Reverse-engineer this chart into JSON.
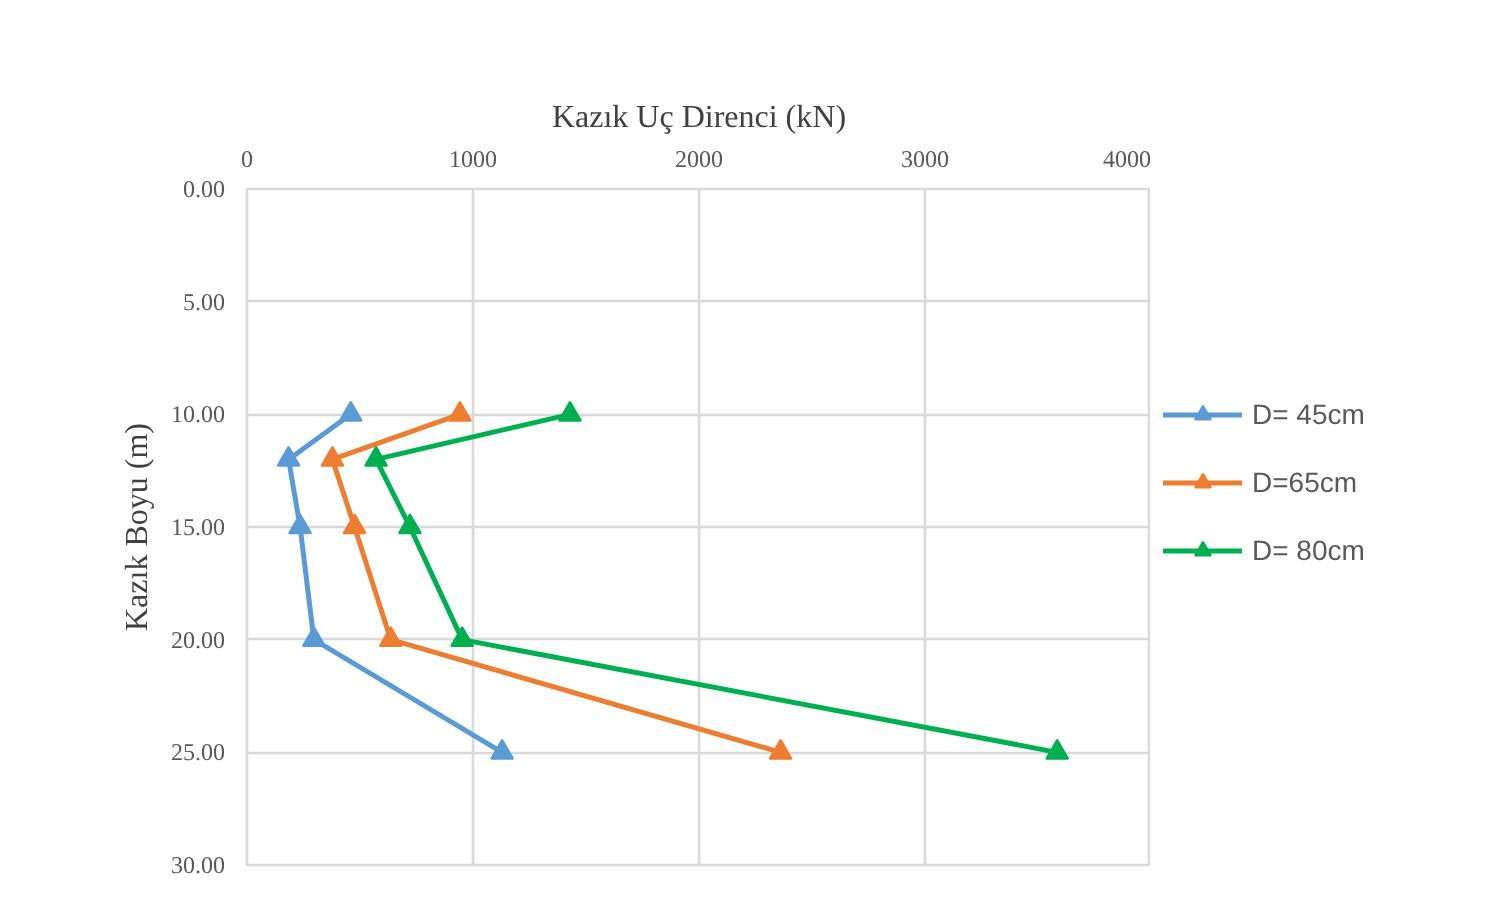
{
  "chart_data": {
    "type": "line",
    "xlabel": "Kazık Uç Direnci (kN)",
    "ylabel": "Kazık Boyu (m)",
    "xlim": [
      0,
      4000
    ],
    "xticks": [
      0,
      1000,
      2000,
      3000,
      4000
    ],
    "ylim": [
      30,
      0
    ],
    "yticks": [
      {
        "value": 0,
        "label": "0.00"
      },
      {
        "value": 5,
        "label": "5.00"
      },
      {
        "value": 10,
        "label": "10.00"
      },
      {
        "value": 15,
        "label": "15.00"
      },
      {
        "value": 20,
        "label": "20.00"
      },
      {
        "value": 25,
        "label": "25.00"
      },
      {
        "value": 30,
        "label": "30.00"
      }
    ],
    "grid": true,
    "legend": "right",
    "marker": "triangle",
    "line_style": "solid",
    "series": [
      {
        "name": "D= 45cm",
        "color": "#5b9bd5",
        "x": [
          459,
          184,
          235,
          296,
          1129
        ],
        "values": [
          10,
          12,
          15,
          20,
          25
        ]
      },
      {
        "name": "D=65cm",
        "color": "#ed7d31",
        "x": [
          942,
          378,
          476,
          636,
          2361
        ],
        "values": [
          10,
          12,
          15,
          20,
          25
        ]
      },
      {
        "name": "D= 80cm",
        "color": "#00b050",
        "x": [
          1429,
          571,
          721,
          952,
          3585
        ],
        "values": [
          10,
          12,
          15,
          20,
          25
        ]
      }
    ]
  }
}
